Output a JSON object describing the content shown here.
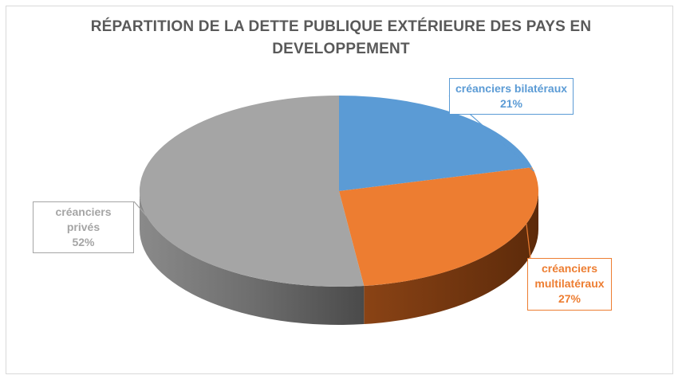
{
  "chart_data": {
    "type": "pie",
    "title_line1": "RÉPARTITION DE LA DETTE PUBLIQUE EXTÉRIEURE DES PAYS EN",
    "title_line2": "DEVELOPPEMENT",
    "three_d": true,
    "slices": [
      {
        "label_lines": [
          "créanciers bilatéraux"
        ],
        "pct_text": "21%",
        "value": 21,
        "color": "#5b9bd5",
        "dark": "#2e5f8f"
      },
      {
        "label_lines": [
          "créanciers",
          "multilatéraux"
        ],
        "pct_text": "27%",
        "value": 27,
        "color": "#ed7d31",
        "dark": "#7a3a10"
      },
      {
        "label_lines": [
          "créanciers privés"
        ],
        "pct_text": "52%",
        "value": 52,
        "color": "#a5a5a5",
        "dark": "#5e5e5e"
      }
    ]
  }
}
